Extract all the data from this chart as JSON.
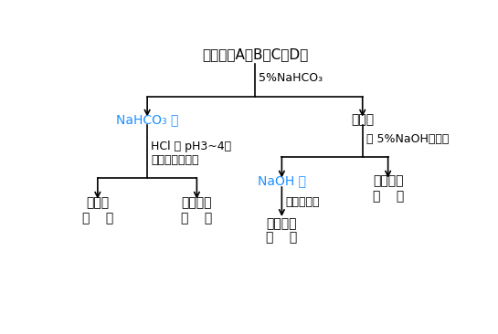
{
  "title": "混合物（A、B、C、D）",
  "label_nahco3_liq": "NaHCO₃ 液",
  "label_insoluble": "不溶物",
  "label_step1": "5%NaHCO₃",
  "label_step2a_l1": "HCl 调 pH3~4，",
  "label_step2a_l2": "加热，趋热抒滤",
  "label_step2b": "加 5%NaOH，加热",
  "label_ll": "滤液甲",
  "label_ll_sub": "（    ）",
  "label_lm": "不溶物乙",
  "label_lm_sub": "（    ）",
  "label_naoh_liq": "NaOH 液",
  "label_rr": "不溶物丁",
  "label_rr_sub": "（    ）",
  "label_step3": "酸化，过滤",
  "label_rl_sub": "不溶物丙",
  "label_rl_sub2": "（    ）",
  "colors": {
    "blue": "#1E90FF",
    "black": "#000000",
    "background": "#FFFFFF"
  },
  "figsize": [
    5.45,
    3.66
  ],
  "dpi": 100
}
